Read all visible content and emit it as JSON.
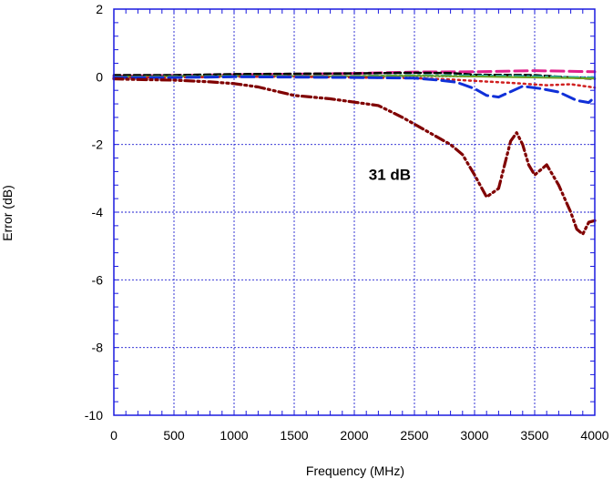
{
  "chart_data": {
    "type": "line",
    "xlabel": "Frequency (MHz)",
    "ylabel": "Error (dB)",
    "xlim": [
      0,
      4000
    ],
    "ylim": [
      -10,
      2
    ],
    "xticks": [
      0,
      500,
      1000,
      1500,
      2000,
      2500,
      3000,
      3500,
      4000
    ],
    "yticks": [
      -10,
      -8,
      -6,
      -4,
      -2,
      0,
      2
    ],
    "x_minor_step": 100,
    "y_minor_step": 0.4,
    "grid": true,
    "annotations": [
      {
        "text": "31 dB",
        "x": 2470,
        "y": -3.05
      }
    ],
    "series": [
      {
        "color": "#e0208a",
        "style": "dash-long",
        "width": 3,
        "points": [
          [
            0,
            0.02
          ],
          [
            500,
            0.04
          ],
          [
            1000,
            0.06
          ],
          [
            1500,
            0.08
          ],
          [
            2000,
            0.1
          ],
          [
            2500,
            0.14
          ],
          [
            3000,
            0.15
          ],
          [
            3500,
            0.18
          ],
          [
            4000,
            0.15
          ]
        ]
      },
      {
        "color": "#000000",
        "style": "dash",
        "width": 2.5,
        "points": [
          [
            0,
            0.05
          ],
          [
            500,
            0.05
          ],
          [
            1000,
            0.08
          ],
          [
            1500,
            0.09
          ],
          [
            2000,
            0.1
          ],
          [
            2500,
            0.12
          ],
          [
            2800,
            0.11
          ],
          [
            3000,
            0.06
          ],
          [
            3500,
            0.05
          ],
          [
            3800,
            -0.02
          ],
          [
            4000,
            -0.06
          ]
        ]
      },
      {
        "color": "#20b0a0",
        "style": "dash-dot",
        "width": 2,
        "points": [
          [
            0,
            0.0
          ],
          [
            500,
            0.02
          ],
          [
            1000,
            0.03
          ],
          [
            1500,
            0.03
          ],
          [
            2000,
            0.03
          ],
          [
            2500,
            0.05
          ],
          [
            3000,
            0.04
          ],
          [
            3500,
            0.02
          ],
          [
            4000,
            -0.02
          ]
        ]
      },
      {
        "color": "#70a020",
        "style": "solid",
        "width": 2,
        "points": [
          [
            0,
            0.0
          ],
          [
            500,
            0.01
          ],
          [
            1000,
            0.02
          ],
          [
            1500,
            0.02
          ],
          [
            2000,
            0.02
          ],
          [
            2500,
            0.03
          ],
          [
            3000,
            0.01
          ],
          [
            3500,
            -0.02
          ],
          [
            4000,
            -0.05
          ]
        ]
      },
      {
        "color": "#d02020",
        "style": "dot",
        "width": 2.5,
        "points": [
          [
            0,
            -0.02
          ],
          [
            500,
            -0.02
          ],
          [
            1000,
            0.0
          ],
          [
            1500,
            0.0
          ],
          [
            2000,
            -0.02
          ],
          [
            2500,
            -0.04
          ],
          [
            2800,
            -0.08
          ],
          [
            3000,
            -0.12
          ],
          [
            3300,
            -0.18
          ],
          [
            3600,
            -0.25
          ],
          [
            3800,
            -0.22
          ],
          [
            4000,
            -0.32
          ]
        ]
      },
      {
        "color": "#1030d8",
        "style": "dash-long",
        "width": 3,
        "points": [
          [
            0,
            -0.02
          ],
          [
            500,
            -0.02
          ],
          [
            1000,
            0.0
          ],
          [
            1500,
            -0.01
          ],
          [
            2000,
            -0.02
          ],
          [
            2500,
            -0.04
          ],
          [
            2700,
            -0.1
          ],
          [
            2850,
            -0.16
          ],
          [
            3000,
            -0.35
          ],
          [
            3100,
            -0.55
          ],
          [
            3200,
            -0.6
          ],
          [
            3400,
            -0.28
          ],
          [
            3550,
            -0.35
          ],
          [
            3700,
            -0.45
          ],
          [
            3850,
            -0.7
          ],
          [
            3950,
            -0.76
          ],
          [
            4000,
            -0.6
          ]
        ]
      },
      {
        "color": "#800000",
        "style": "dash-dot-dot",
        "width": 3.2,
        "points": [
          [
            0,
            -0.06
          ],
          [
            200,
            -0.08
          ],
          [
            500,
            -0.1
          ],
          [
            800,
            -0.15
          ],
          [
            1000,
            -0.2
          ],
          [
            1200,
            -0.3
          ],
          [
            1500,
            -0.55
          ],
          [
            1800,
            -0.65
          ],
          [
            2000,
            -0.75
          ],
          [
            2200,
            -0.85
          ],
          [
            2400,
            -1.2
          ],
          [
            2600,
            -1.6
          ],
          [
            2800,
            -2.0
          ],
          [
            2900,
            -2.3
          ],
          [
            3000,
            -2.9
          ],
          [
            3100,
            -3.55
          ],
          [
            3200,
            -3.3
          ],
          [
            3250,
            -2.6
          ],
          [
            3300,
            -1.9
          ],
          [
            3350,
            -1.65
          ],
          [
            3400,
            -2.0
          ],
          [
            3450,
            -2.6
          ],
          [
            3500,
            -2.9
          ],
          [
            3600,
            -2.6
          ],
          [
            3700,
            -3.2
          ],
          [
            3800,
            -4.0
          ],
          [
            3850,
            -4.5
          ],
          [
            3900,
            -4.65
          ],
          [
            3950,
            -4.3
          ],
          [
            4000,
            -4.25
          ]
        ]
      }
    ]
  }
}
